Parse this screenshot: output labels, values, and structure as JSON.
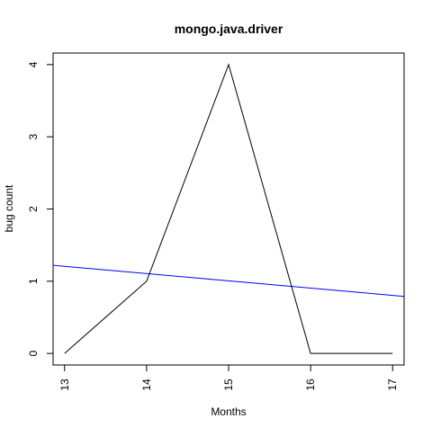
{
  "chart_data": {
    "type": "line",
    "title": "mongo.java.driver",
    "xlabel": "Months",
    "ylabel": "bug count",
    "x": [
      13,
      14,
      15,
      16,
      17
    ],
    "series": [
      {
        "values": [
          0,
          1,
          4,
          0,
          0
        ],
        "color": "#000000"
      }
    ],
    "trend_line": {
      "color": "#0000ff",
      "points": [
        [
          12.86,
          1.22
        ],
        [
          17.14,
          0.79
        ]
      ]
    },
    "xlim": [
      12.86,
      17.14
    ],
    "ylim": [
      -0.16,
      4.16
    ],
    "x_ticks": [
      "13",
      "14",
      "15",
      "16",
      "17"
    ],
    "y_ticks": [
      "0",
      "1",
      "2",
      "3",
      "4"
    ],
    "x_tick_values": [
      13,
      14,
      15,
      16,
      17
    ],
    "y_tick_values": [
      0,
      1,
      2,
      3,
      4
    ],
    "grid": false,
    "legend": "none"
  }
}
